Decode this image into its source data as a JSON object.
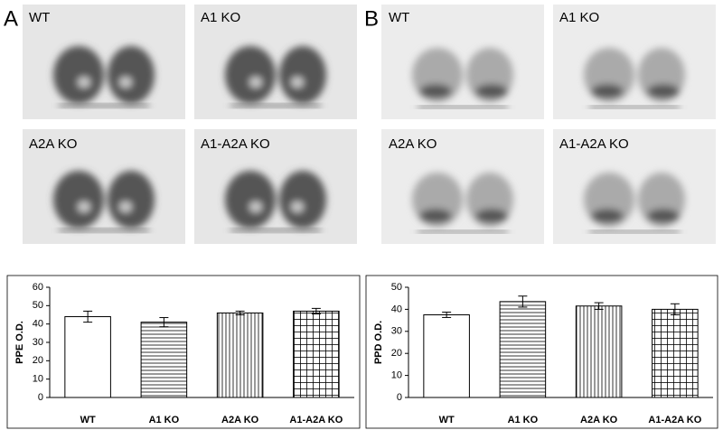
{
  "panels": [
    {
      "letter": "A",
      "images": [
        {
          "label": "WT"
        },
        {
          "label": "A1 KO"
        },
        {
          "label": "A2A KO"
        },
        {
          "label": "A1-A2A KO"
        }
      ]
    },
    {
      "letter": "B",
      "images": [
        {
          "label": "WT"
        },
        {
          "label": "A1 KO"
        },
        {
          "label": "A2A KO"
        },
        {
          "label": "A1-A2A KO"
        }
      ]
    }
  ],
  "chart_data": [
    {
      "type": "bar",
      "y_label": "PPE O.D.",
      "categories": [
        "WT",
        "A1 KO",
        "A2A KO",
        "A1-A2A KO"
      ],
      "values": [
        44,
        41,
        46,
        47
      ],
      "errors": [
        3,
        2.5,
        1,
        1.5
      ],
      "patterns": [
        "none",
        "horizontal",
        "vertical",
        "grid"
      ],
      "color": "#000000",
      "ylim": [
        0,
        60
      ],
      "yticks": [
        0,
        10,
        20,
        30,
        40,
        50,
        60
      ]
    },
    {
      "type": "bar",
      "y_label": "PPD O.D.",
      "categories": [
        "WT",
        "A1 KO",
        "A2A KO",
        "A1-A2A KO"
      ],
      "values": [
        37.5,
        43.5,
        41.5,
        40
      ],
      "errors": [
        1.2,
        2.5,
        1.5,
        2.5
      ],
      "patterns": [
        "none",
        "horizontal",
        "vertical",
        "grid"
      ],
      "color": "#000000",
      "ylim": [
        0,
        50
      ],
      "yticks": [
        0,
        10,
        20,
        30,
        40,
        50
      ]
    }
  ]
}
